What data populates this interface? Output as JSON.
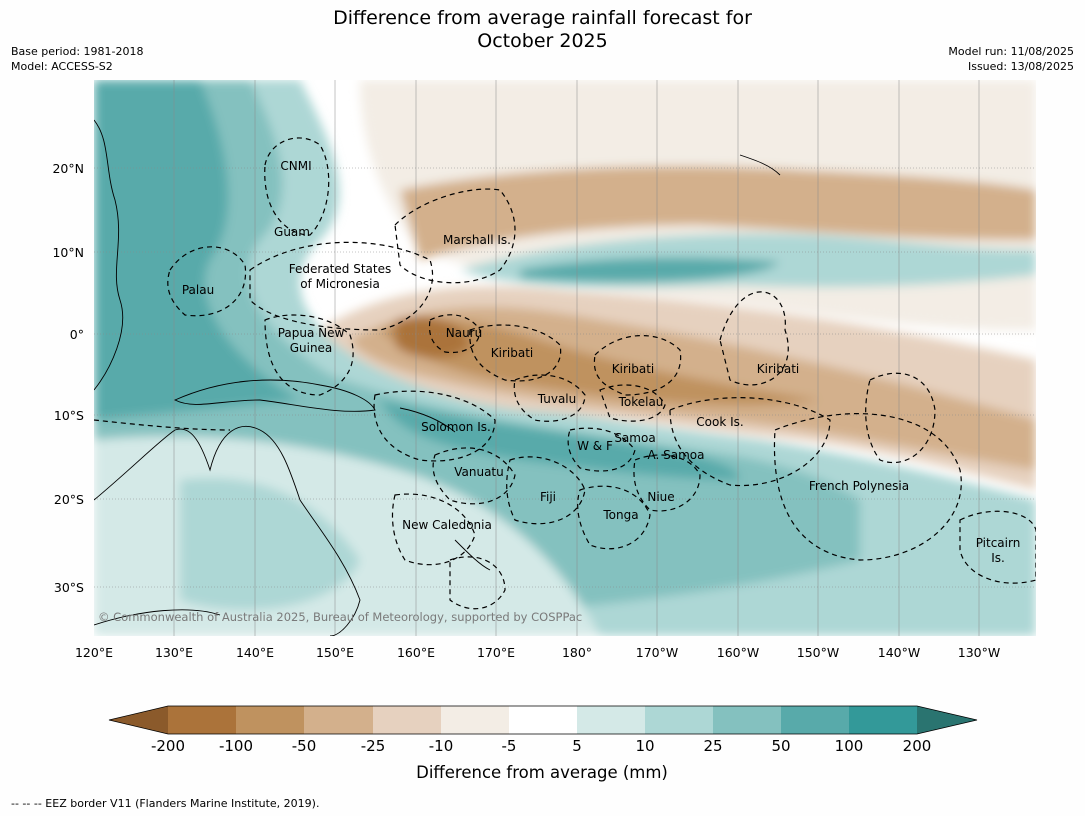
{
  "header": {
    "title_line1": "Difference from average rainfall forecast for",
    "title_line2": "October 2025",
    "base_period": "Base period: 1981-2018",
    "model": "Model: ACCESS-S2",
    "model_run": "Model run: 11/08/2025",
    "issued": "Issued: 13/08/2025"
  },
  "map": {
    "lat_labels": [
      "20°N",
      "10°N",
      "0°",
      "10°S",
      "20°S",
      "30°S"
    ],
    "lon_labels": [
      "120°E",
      "130°E",
      "140°E",
      "150°E",
      "160°E",
      "170°E",
      "180°",
      "170°W",
      "160°W",
      "150°W",
      "140°W",
      "130°W"
    ],
    "regions": [
      {
        "id": "cnmi",
        "label": "CNMI"
      },
      {
        "id": "guam",
        "label": "Guam"
      },
      {
        "id": "marshall",
        "label": "Marshall Is."
      },
      {
        "id": "fsm",
        "label": "Federated States",
        "label2": "of Micronesia"
      },
      {
        "id": "palau",
        "label": "Palau"
      },
      {
        "id": "png",
        "label": "Papua New",
        "label2": "Guinea"
      },
      {
        "id": "nauru",
        "label": "Nauru"
      },
      {
        "id": "kiribati-w",
        "label": "Kiribati"
      },
      {
        "id": "kiribati-c",
        "label": "Kiribati"
      },
      {
        "id": "kiribati-e",
        "label": "Kiribati"
      },
      {
        "id": "tuvalu",
        "label": "Tuvalu"
      },
      {
        "id": "tokelau",
        "label": "Tokelau"
      },
      {
        "id": "cook",
        "label": "Cook Is."
      },
      {
        "id": "solomon",
        "label": "Solomon Is."
      },
      {
        "id": "wf",
        "label": "W & F"
      },
      {
        "id": "samoa",
        "label": "Samoa"
      },
      {
        "id": "asamoa",
        "label": "A. Samoa"
      },
      {
        "id": "vanuatu",
        "label": "Vanuatu"
      },
      {
        "id": "fiji",
        "label": "Fiji"
      },
      {
        "id": "niue",
        "label": "Niue"
      },
      {
        "id": "frpoly",
        "label": "French Polynesia"
      },
      {
        "id": "tonga",
        "label": "Tonga"
      },
      {
        "id": "newcal",
        "label": "New Caledonia"
      },
      {
        "id": "pitcairn",
        "label": "Pitcairn",
        "label2": "Is."
      }
    ],
    "copyright": "© Commonwealth of Australia 2025, Bureau of Meteorology, supported by COSPPac"
  },
  "colorbar": {
    "colors": [
      "#8b5a2b",
      "#ab733a",
      "#bf925f",
      "#d3b08c",
      "#e6d1bf",
      "#f3ede5",
      "#ffffff",
      "#d4e9e7",
      "#add7d5",
      "#84c1bf",
      "#58aaaa",
      "#339999",
      "#2a7470"
    ],
    "labels": [
      "-200",
      "-100",
      "-50",
      "-25",
      "-10",
      "-5",
      "5",
      "10",
      "25",
      "50",
      "100",
      "200"
    ],
    "title": "Difference from average (mm)"
  },
  "footnote": "--  --  -- EEZ border V11 (Flanders Marine Institute, 2019)."
}
